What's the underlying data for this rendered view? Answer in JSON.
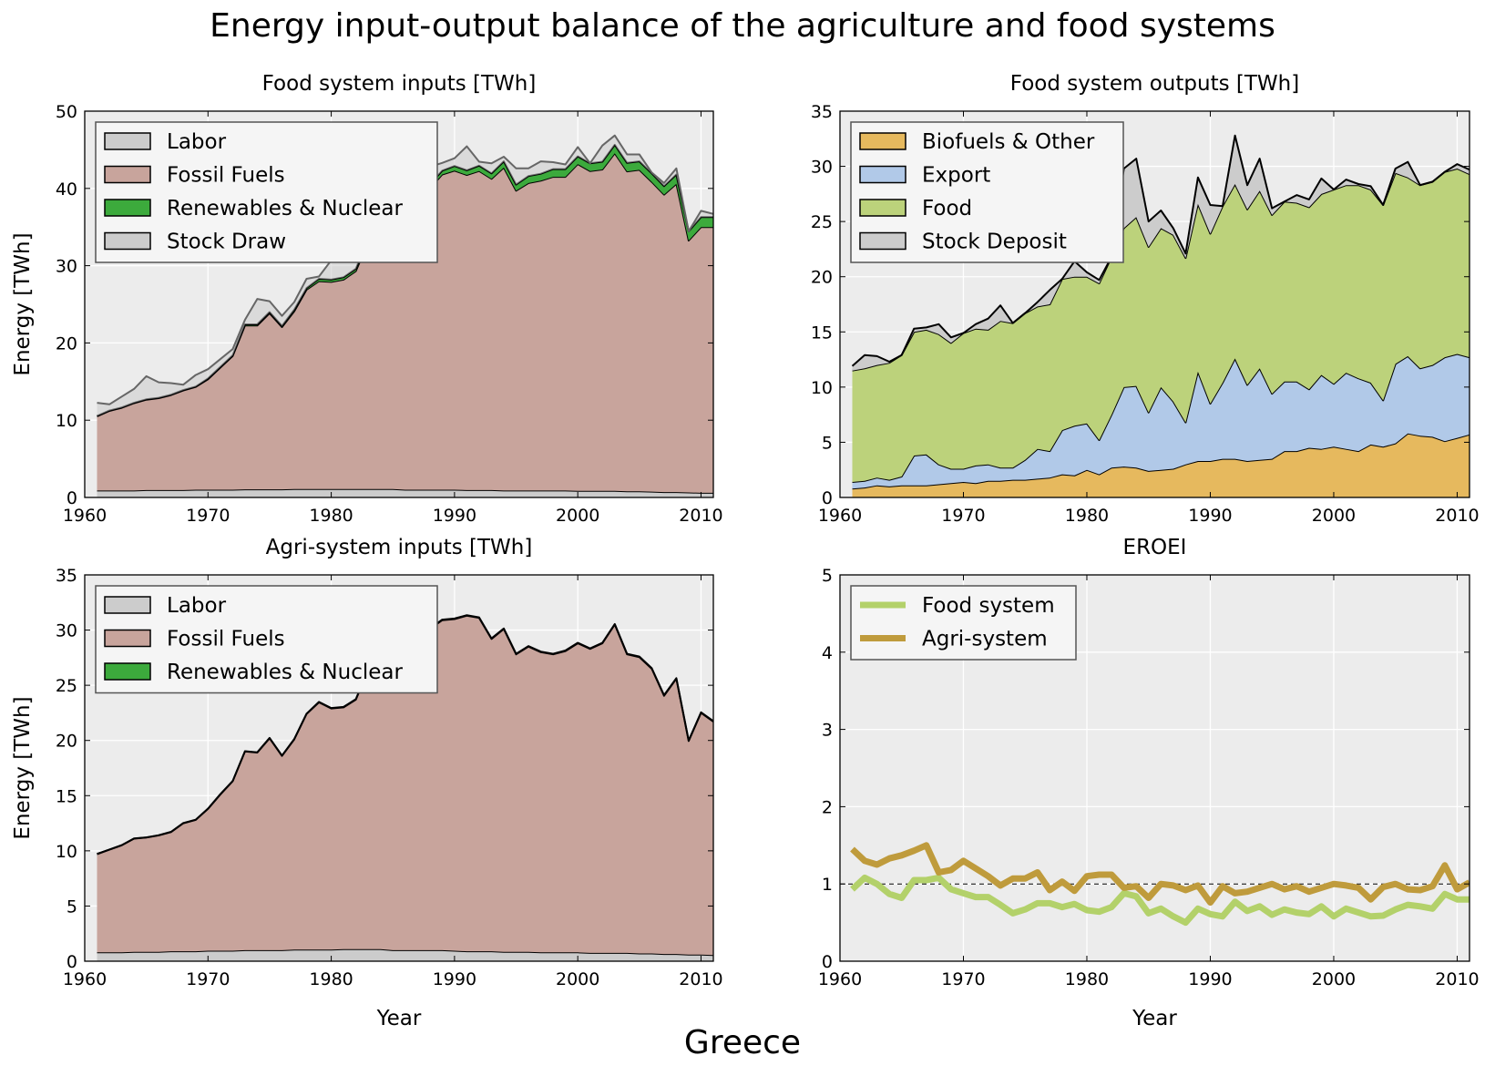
{
  "title": "Energy input-output balance of the agriculture and food systems",
  "footer": "Greece",
  "colors": {
    "labor": "#cccccc",
    "fossil": "#c8a49c",
    "renewables": "#3caa3c",
    "stock_draw": "#cccccc",
    "biofuels": "#e6b95e",
    "export": "#b1c9e8",
    "food": "#bcd27b",
    "stock_deposit": "#cccccc",
    "food_system_line": "#b3d16a",
    "agri_system_line": "#bf9b3c",
    "plot_bg": "#ececec",
    "legend_bg": "#f5f5f5"
  },
  "chart_data": [
    {
      "id": "food-inputs",
      "type": "area",
      "title": "Food system inputs [TWh]",
      "xlabel": "",
      "ylabel": "Energy [TWh]",
      "xlim": [
        1960,
        2011
      ],
      "ylim": [
        0,
        50
      ],
      "xticks": [
        1960,
        1970,
        1980,
        1990,
        2000,
        2010
      ],
      "yticks": [
        0,
        10,
        20,
        30,
        40,
        50
      ],
      "grid": true,
      "legend_position": "top-left",
      "x": [
        1961,
        1962,
        1963,
        1964,
        1965,
        1966,
        1967,
        1968,
        1969,
        1970,
        1971,
        1972,
        1973,
        1974,
        1975,
        1976,
        1977,
        1978,
        1979,
        1980,
        1981,
        1982,
        1983,
        1984,
        1985,
        1986,
        1987,
        1988,
        1989,
        1990,
        1991,
        1992,
        1993,
        1994,
        1995,
        1996,
        1997,
        1998,
        1999,
        2000,
        2001,
        2002,
        2003,
        2004,
        2005,
        2006,
        2007,
        2008,
        2009,
        2010,
        2011
      ],
      "series": [
        {
          "name": "Labor",
          "color_key": "labor",
          "values": [
            0.9,
            0.9,
            0.9,
            0.9,
            0.95,
            0.95,
            0.95,
            0.95,
            1.0,
            1.0,
            1.0,
            1.0,
            1.05,
            1.05,
            1.05,
            1.05,
            1.1,
            1.1,
            1.1,
            1.1,
            1.1,
            1.1,
            1.1,
            1.1,
            1.1,
            1.0,
            1.0,
            1.0,
            1.0,
            1.0,
            0.95,
            0.95,
            0.95,
            0.9,
            0.9,
            0.9,
            0.9,
            0.9,
            0.9,
            0.85,
            0.85,
            0.85,
            0.85,
            0.8,
            0.8,
            0.75,
            0.7,
            0.7,
            0.65,
            0.6,
            0.6
          ]
        },
        {
          "name": "Fossil Fuels",
          "color_key": "fossil",
          "values": [
            9.6,
            10.3,
            10.7,
            11.3,
            11.7,
            11.9,
            12.3,
            12.9,
            13.3,
            14.3,
            15.8,
            17.3,
            21.2,
            21.2,
            22.8,
            21.0,
            23.0,
            25.8,
            26.9,
            26.8,
            27.1,
            28.2,
            32.0,
            33.8,
            38.0,
            36.0,
            38.0,
            39.0,
            40.8,
            41.3,
            40.8,
            41.3,
            40.3,
            41.8,
            38.8,
            39.8,
            40.1,
            40.6,
            40.6,
            42.3,
            41.4,
            41.6,
            43.7,
            41.4,
            41.6,
            40.1,
            38.5,
            39.9,
            32.6,
            34.4,
            34.4
          ]
        },
        {
          "name": "Renewables & Nuclear",
          "color_key": "renewables",
          "values": [
            0.05,
            0.05,
            0.05,
            0.05,
            0.05,
            0.05,
            0.05,
            0.05,
            0.05,
            0.1,
            0.1,
            0.1,
            0.15,
            0.15,
            0.15,
            0.15,
            0.2,
            0.2,
            0.3,
            0.3,
            0.3,
            0.3,
            0.4,
            0.4,
            0.4,
            0.4,
            0.5,
            0.5,
            0.5,
            0.6,
            0.6,
            0.7,
            0.7,
            0.8,
            0.8,
            0.9,
            0.9,
            1.0,
            1.0,
            1.0,
            1.0,
            1.0,
            1.1,
            1.1,
            1.1,
            1.1,
            1.1,
            1.2,
            1.2,
            1.3,
            1.3
          ]
        },
        {
          "name": "Stock Draw",
          "color_key": "stock_draw",
          "values": [
            1.7,
            0.8,
            1.4,
            1.8,
            3.0,
            2.0,
            1.5,
            0.7,
            1.5,
            1.2,
            1.0,
            0.8,
            0.6,
            3.3,
            1.4,
            1.3,
            1.0,
            1.2,
            0.3,
            2.5,
            3.0,
            2.2,
            0.1,
            0.6,
            0.0,
            0.0,
            0.3,
            2.3,
            1.0,
            1.0,
            3.1,
            0.5,
            1.3,
            0.6,
            2.1,
            1.0,
            1.6,
            0.9,
            0.6,
            1.2,
            0.0,
            2.1,
            1.2,
            1.1,
            0.9,
            0.1,
            0.4,
            0.8,
            0.0,
            0.8,
            0.4
          ]
        }
      ]
    },
    {
      "id": "food-outputs",
      "type": "area",
      "title": "Food system outputs [TWh]",
      "xlabel": "",
      "ylabel": "",
      "xlim": [
        1960,
        2011
      ],
      "ylim": [
        0,
        35
      ],
      "xticks": [
        1960,
        1970,
        1980,
        1990,
        2000,
        2010
      ],
      "yticks": [
        0,
        5,
        10,
        15,
        20,
        25,
        30,
        35
      ],
      "grid": true,
      "legend_position": "top-left",
      "x": [
        1961,
        1962,
        1963,
        1964,
        1965,
        1966,
        1967,
        1968,
        1969,
        1970,
        1971,
        1972,
        1973,
        1974,
        1975,
        1976,
        1977,
        1978,
        1979,
        1980,
        1981,
        1982,
        1983,
        1984,
        1985,
        1986,
        1987,
        1988,
        1989,
        1990,
        1991,
        1992,
        1993,
        1994,
        1995,
        1996,
        1997,
        1998,
        1999,
        2000,
        2001,
        2002,
        2003,
        2004,
        2005,
        2006,
        2007,
        2008,
        2009,
        2010,
        2011
      ],
      "series": [
        {
          "name": "Biofuels & Other",
          "color_key": "biofuels",
          "values": [
            0.8,
            0.9,
            1.1,
            1.0,
            1.1,
            1.1,
            1.1,
            1.2,
            1.3,
            1.4,
            1.3,
            1.5,
            1.5,
            1.6,
            1.6,
            1.7,
            1.8,
            2.1,
            2.0,
            2.5,
            2.1,
            2.7,
            2.8,
            2.7,
            2.4,
            2.5,
            2.6,
            3.0,
            3.3,
            3.3,
            3.5,
            3.5,
            3.3,
            3.4,
            3.5,
            4.2,
            4.2,
            4.5,
            4.4,
            4.6,
            4.4,
            4.2,
            4.8,
            4.6,
            4.9,
            5.8,
            5.6,
            5.5,
            5.1,
            5.4,
            5.7
          ]
        },
        {
          "name": "Export",
          "color_key": "export",
          "values": [
            0.6,
            0.6,
            0.7,
            0.6,
            0.8,
            2.7,
            2.8,
            1.8,
            1.3,
            1.2,
            1.6,
            1.5,
            1.2,
            1.1,
            1.8,
            2.7,
            2.4,
            4.0,
            4.5,
            4.2,
            3.1,
            4.8,
            7.2,
            7.4,
            5.3,
            7.5,
            6.1,
            3.8,
            8.1,
            5.2,
            6.9,
            9.1,
            6.9,
            8.3,
            5.9,
            6.3,
            6.3,
            5.3,
            6.7,
            5.7,
            6.9,
            6.6,
            5.6,
            4.2,
            7.2,
            7.0,
            6.1,
            6.5,
            7.6,
            7.6,
            7.0
          ]
        },
        {
          "name": "Food",
          "color_key": "food",
          "values": [
            10.1,
            10.2,
            10.2,
            10.6,
            11.0,
            11.2,
            11.3,
            11.8,
            11.4,
            12.3,
            12.4,
            12.2,
            13.3,
            13.1,
            13.3,
            12.9,
            13.3,
            13.7,
            13.5,
            13.3,
            14.2,
            14.3,
            14.4,
            15.3,
            15.0,
            14.4,
            15.1,
            14.9,
            15.2,
            15.4,
            16.0,
            15.8,
            15.9,
            16.1,
            16.2,
            16.3,
            16.2,
            16.5,
            16.4,
            17.6,
            17.0,
            17.5,
            17.5,
            17.7,
            17.3,
            16.2,
            16.6,
            16.6,
            16.8,
            16.8,
            16.6
          ]
        },
        {
          "name": "Stock Deposit",
          "color_key": "stock_deposit",
          "values": [
            0.4,
            1.2,
            0.8,
            0.1,
            0.0,
            0.3,
            0.2,
            0.9,
            0.5,
            0.0,
            0.4,
            1.0,
            1.4,
            0.0,
            0.0,
            0.4,
            1.3,
            0.0,
            1.4,
            0.4,
            0.3,
            0.0,
            5.4,
            5.3,
            2.3,
            1.6,
            0.6,
            0.4,
            2.4,
            2.6,
            0.0,
            4.4,
            2.2,
            2.9,
            0.6,
            0.0,
            0.7,
            0.7,
            1.4,
            0.0,
            0.5,
            0.1,
            0.3,
            0.0,
            0.4,
            1.4,
            0.0,
            0.0,
            0.0,
            0.4,
            0.4
          ]
        }
      ]
    },
    {
      "id": "agri-inputs",
      "type": "area",
      "title": "Agri-system inputs [TWh]",
      "xlabel": "Year",
      "ylabel": "Energy [TWh]",
      "xlim": [
        1960,
        2011
      ],
      "ylim": [
        0,
        35
      ],
      "xticks": [
        1960,
        1970,
        1980,
        1990,
        2000,
        2010
      ],
      "yticks": [
        0,
        5,
        10,
        15,
        20,
        25,
        30,
        35
      ],
      "grid": true,
      "legend_position": "top-left",
      "x": [
        1961,
        1962,
        1963,
        1964,
        1965,
        1966,
        1967,
        1968,
        1969,
        1970,
        1971,
        1972,
        1973,
        1974,
        1975,
        1976,
        1977,
        1978,
        1979,
        1980,
        1981,
        1982,
        1983,
        1984,
        1985,
        1986,
        1987,
        1988,
        1989,
        1990,
        1991,
        1992,
        1993,
        1994,
        1995,
        1996,
        1997,
        1998,
        1999,
        2000,
        2001,
        2002,
        2003,
        2004,
        2005,
        2006,
        2007,
        2008,
        2009,
        2010,
        2011
      ],
      "series": [
        {
          "name": "Labor",
          "color_key": "labor",
          "values": [
            0.8,
            0.8,
            0.8,
            0.85,
            0.85,
            0.85,
            0.9,
            0.9,
            0.9,
            0.95,
            0.95,
            0.95,
            1.0,
            1.0,
            1.0,
            1.0,
            1.05,
            1.05,
            1.05,
            1.05,
            1.1,
            1.1,
            1.1,
            1.1,
            1.0,
            1.0,
            1.0,
            1.0,
            1.0,
            0.95,
            0.9,
            0.9,
            0.9,
            0.85,
            0.85,
            0.85,
            0.8,
            0.8,
            0.8,
            0.8,
            0.75,
            0.75,
            0.75,
            0.75,
            0.7,
            0.7,
            0.65,
            0.65,
            0.6,
            0.6,
            0.55
          ]
        },
        {
          "name": "Fossil Fuels",
          "color_key": "fossil",
          "values": [
            8.9,
            9.3,
            9.7,
            10.25,
            10.35,
            10.55,
            10.8,
            11.6,
            11.9,
            12.85,
            14.15,
            15.35,
            18.0,
            17.9,
            19.2,
            17.6,
            19.05,
            21.35,
            22.4,
            21.85,
            21.9,
            22.6,
            25.3,
            26.8,
            29.2,
            26.4,
            27.0,
            29.1,
            29.9,
            30.05,
            30.4,
            30.2,
            28.3,
            29.25,
            26.95,
            27.65,
            27.2,
            27.0,
            27.3,
            28.0,
            27.55,
            28.05,
            29.75,
            27.05,
            26.85,
            25.8,
            23.4,
            24.95,
            19.35,
            21.9,
            21.15
          ]
        },
        {
          "name": "Renewables & Nuclear",
          "color_key": "renewables",
          "values": [
            0.02,
            0.02,
            0.02,
            0.02,
            0.02,
            0.02,
            0.02,
            0.02,
            0.02,
            0.03,
            0.03,
            0.03,
            0.03,
            0.03,
            0.03,
            0.03,
            0.03,
            0.03,
            0.04,
            0.04,
            0.04,
            0.04,
            0.05,
            0.05,
            0.05,
            0.05,
            0.05,
            0.05,
            0.05,
            0.05,
            0.05,
            0.05,
            0.05,
            0.05,
            0.05,
            0.05,
            0.05,
            0.05,
            0.05,
            0.05,
            0.05,
            0.05,
            0.05,
            0.05,
            0.05,
            0.05,
            0.05,
            0.05,
            0.05,
            0.05,
            0.05
          ]
        }
      ]
    },
    {
      "id": "eroei",
      "type": "line",
      "title": "EROEI",
      "xlabel": "Year",
      "ylabel": "",
      "xlim": [
        1960,
        2011
      ],
      "ylim": [
        0,
        5
      ],
      "xticks": [
        1960,
        1970,
        1980,
        1990,
        2000,
        2010
      ],
      "yticks": [
        0,
        1,
        2,
        3,
        4,
        5
      ],
      "grid": true,
      "reference_line": 1,
      "legend_position": "top-left",
      "x": [
        1961,
        1962,
        1963,
        1964,
        1965,
        1966,
        1967,
        1968,
        1969,
        1970,
        1971,
        1972,
        1973,
        1974,
        1975,
        1976,
        1977,
        1978,
        1979,
        1980,
        1981,
        1982,
        1983,
        1984,
        1985,
        1986,
        1987,
        1988,
        1989,
        1990,
        1991,
        1992,
        1993,
        1994,
        1995,
        1996,
        1997,
        1998,
        1999,
        2000,
        2001,
        2002,
        2003,
        2004,
        2005,
        2006,
        2007,
        2008,
        2009,
        2010,
        2011
      ],
      "series": [
        {
          "name": "Food system",
          "color_key": "food_system_line",
          "values": [
            0.93,
            1.08,
            1.0,
            0.87,
            0.82,
            1.05,
            1.05,
            1.08,
            0.93,
            0.88,
            0.83,
            0.83,
            0.73,
            0.62,
            0.67,
            0.75,
            0.75,
            0.7,
            0.74,
            0.66,
            0.64,
            0.7,
            0.88,
            0.84,
            0.62,
            0.68,
            0.58,
            0.5,
            0.68,
            0.61,
            0.58,
            0.77,
            0.65,
            0.71,
            0.6,
            0.67,
            0.63,
            0.61,
            0.71,
            0.58,
            0.68,
            0.63,
            0.58,
            0.59,
            0.67,
            0.73,
            0.71,
            0.68,
            0.87,
            0.8,
            0.8
          ]
        },
        {
          "name": "Agri-system",
          "color_key": "agri_system_line",
          "values": [
            1.45,
            1.3,
            1.25,
            1.33,
            1.37,
            1.43,
            1.5,
            1.15,
            1.18,
            1.3,
            1.2,
            1.1,
            0.98,
            1.07,
            1.07,
            1.15,
            0.92,
            1.03,
            0.91,
            1.1,
            1.12,
            1.12,
            0.95,
            0.97,
            0.82,
            1.0,
            0.98,
            0.92,
            0.98,
            0.76,
            0.97,
            0.88,
            0.9,
            0.95,
            1.0,
            0.93,
            0.97,
            0.9,
            0.95,
            1.0,
            0.98,
            0.95,
            0.8,
            0.96,
            1.0,
            0.93,
            0.92,
            0.97,
            1.24,
            0.93,
            1.02
          ]
        }
      ]
    }
  ]
}
